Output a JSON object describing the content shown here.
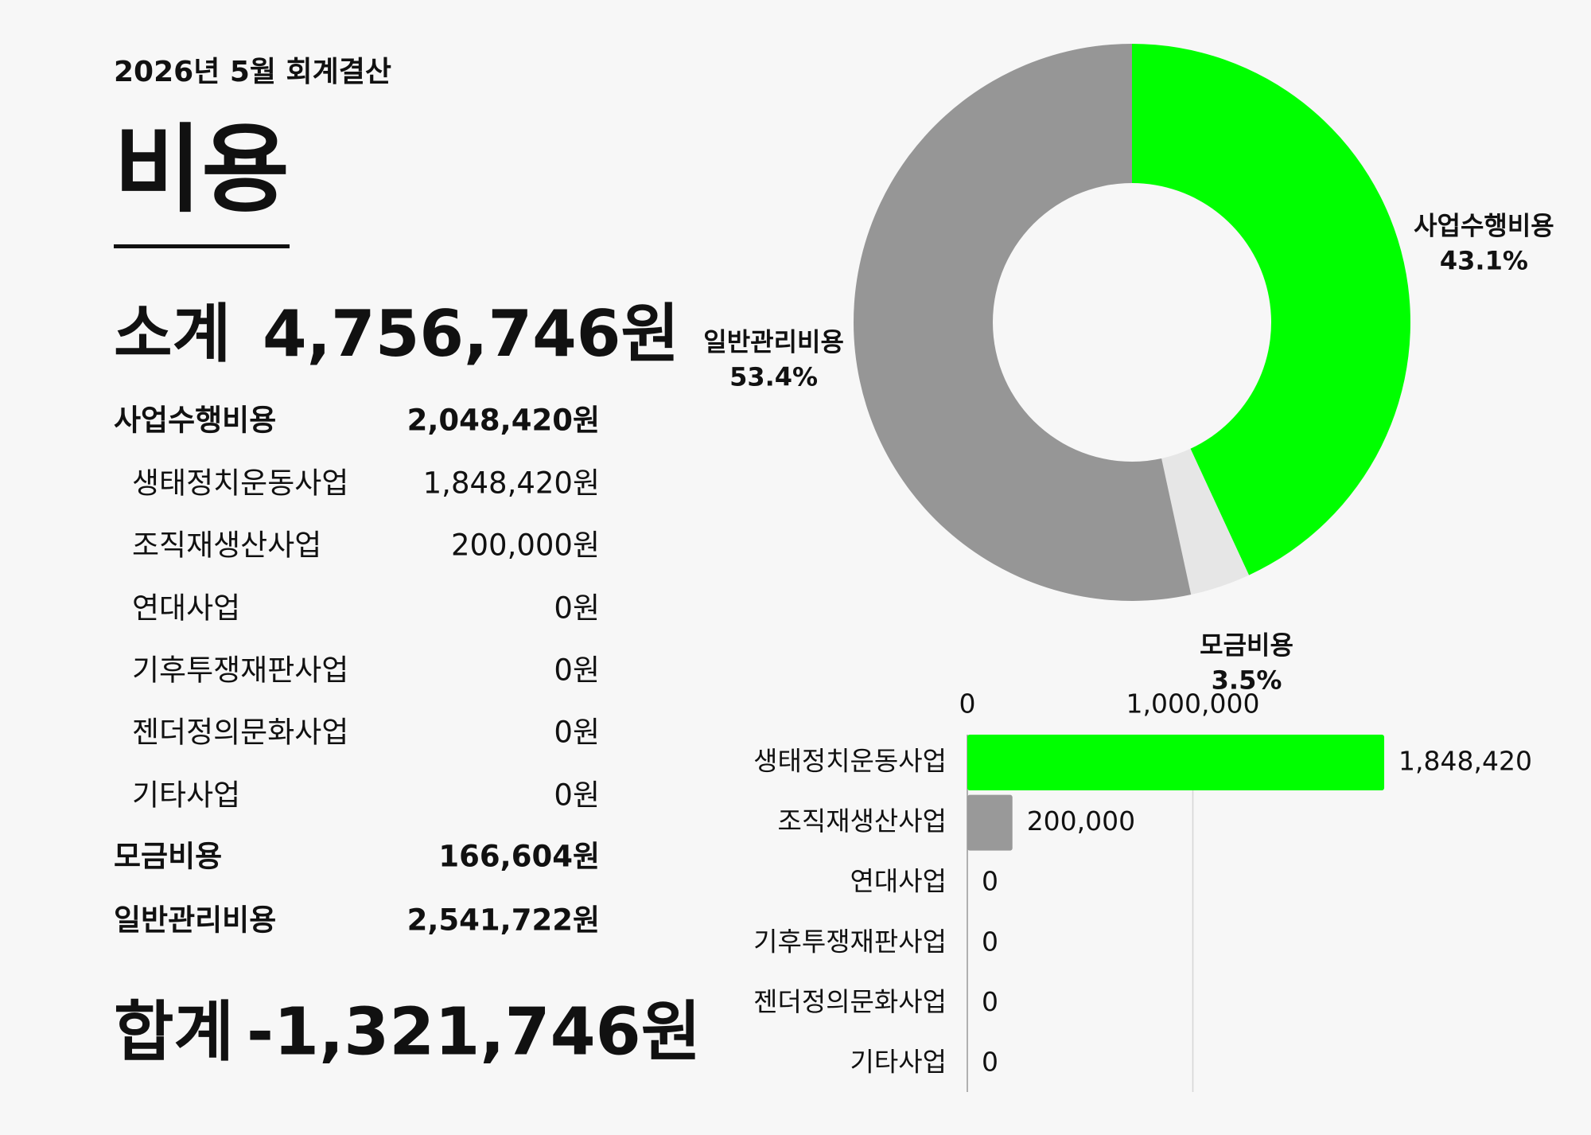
{
  "header": {
    "subtitle": "2026년 5월 회계결산",
    "title": "비용"
  },
  "summary": {
    "subtotal": {
      "label": "소계",
      "value": "4,756,746원"
    },
    "rows": [
      {
        "label": "사업수행비용",
        "value": "2,048,420원",
        "bold": true
      },
      {
        "label": "생태정치운동사업",
        "value": "1,848,420원",
        "bold": false
      },
      {
        "label": "조직재생산사업",
        "value": "200,000원",
        "bold": false
      },
      {
        "label": "연대사업",
        "value": "0원",
        "bold": false
      },
      {
        "label": "기후투쟁재판사업",
        "value": "0원",
        "bold": false
      },
      {
        "label": "젠더정의문화사업",
        "value": "0원",
        "bold": false
      },
      {
        "label": "기타사업",
        "value": "0원",
        "bold": false
      },
      {
        "label": "모금비용",
        "value": "166,604원",
        "bold": true
      },
      {
        "label": "일반관리비용",
        "value": "2,541,722원",
        "bold": true
      }
    ],
    "total": {
      "label": "합계",
      "value": "-1,321,746원"
    }
  },
  "chart_data": [
    {
      "type": "donut",
      "categories": [
        "사업수행비용",
        "모금비용",
        "일반관리비용"
      ],
      "values": [
        43.1,
        3.5,
        53.4
      ],
      "value_labels": [
        "43.1%",
        "3.5%",
        "53.4%"
      ],
      "colors": [
        "#00ff00",
        "#e6e6e6",
        "#969696"
      ]
    },
    {
      "type": "hbar",
      "categories": [
        "생태정치운동사업",
        "조직재생산사업",
        "연대사업",
        "기후투쟁재판사업",
        "젠더정의문화사업",
        "기타사업"
      ],
      "values": [
        1848420,
        200000,
        0,
        0,
        0,
        0
      ],
      "value_labels": [
        "1,848,420",
        "200,000",
        "0",
        "0",
        "0",
        "0"
      ],
      "colors": [
        "#00ff00",
        "#999999",
        "#999999",
        "#999999",
        "#999999",
        "#999999"
      ],
      "xlim": [
        0,
        2000000
      ],
      "xticks": [
        0,
        {
          "value": 1000000,
          "label": "1,000,000"
        }
      ],
      "grid": true
    }
  ]
}
